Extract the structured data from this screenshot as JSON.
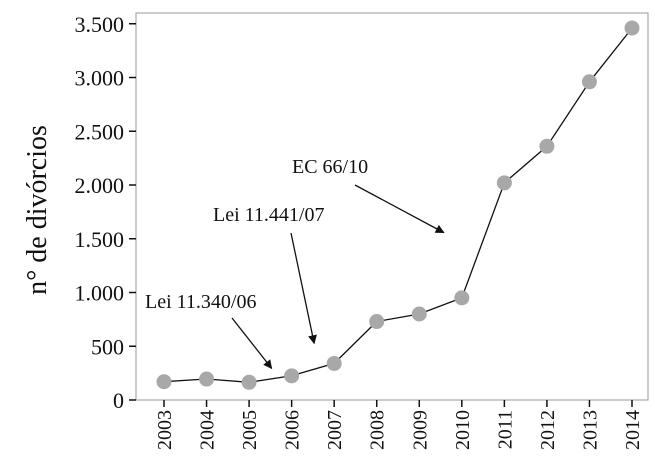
{
  "chart_data": {
    "type": "line",
    "title": "",
    "xlabel": "",
    "ylabel": "n° de divórcios",
    "x": [
      "2003",
      "2004",
      "2005",
      "2006",
      "2007",
      "2008",
      "2009",
      "2010",
      "2011",
      "2012",
      "2013",
      "2014"
    ],
    "series": [
      {
        "values": [
          170,
          195,
          165,
          225,
          340,
          730,
          800,
          950,
          2020,
          2360,
          2960,
          3460
        ]
      }
    ],
    "ylim": [
      0,
      3600
    ],
    "yticks": [
      0,
      500,
      1000,
      1500,
      2000,
      2500,
      3000,
      3500
    ],
    "ytick_labels": [
      "0",
      "500",
      "1.000",
      "1.500",
      "2.000",
      "2.500",
      "3.000",
      "3.500"
    ],
    "grid": false,
    "legend": "none",
    "colors": {
      "line": "#111111",
      "marker": "#a8a8a8",
      "axis": "#999999"
    },
    "annotations": [
      {
        "text": "Lei 11.340/06",
        "target_year": "2006",
        "target_value": 350
      },
      {
        "text": "Lei 11.441/07",
        "target_year": "2007",
        "target_value": 620
      },
      {
        "text": "EC 66/10",
        "target_year": "2010",
        "target_value": 1650
      }
    ]
  }
}
